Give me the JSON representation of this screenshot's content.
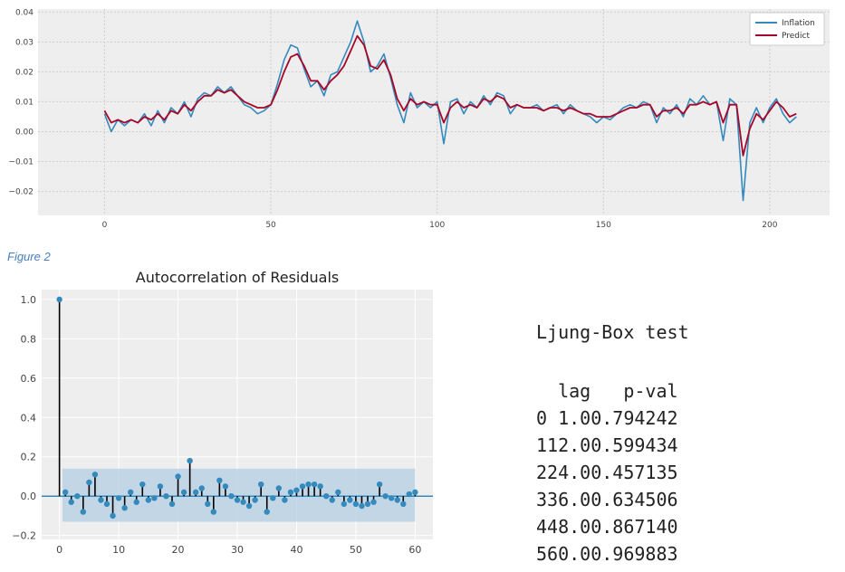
{
  "chart_data": [
    {
      "type": "line",
      "title": "",
      "xlabel": "",
      "ylabel": "",
      "xlim": [
        -20,
        218
      ],
      "ylim": [
        -0.028,
        0.041
      ],
      "xticks": [
        0,
        50,
        100,
        150,
        200
      ],
      "yticks": [
        0.04,
        0.03,
        0.02,
        0.01,
        0.0,
        -0.01,
        -0.02
      ],
      "ytick_labels": [
        "0.04",
        "0.03",
        "0.02",
        "0.01",
        "0.00",
        "−0.01",
        "−0.02"
      ],
      "grid": true,
      "legend_position": "top-right",
      "series": [
        {
          "name": "Inflation",
          "color": "#348abd",
          "x": [
            0,
            2,
            4,
            6,
            8,
            10,
            12,
            14,
            16,
            18,
            20,
            22,
            24,
            26,
            28,
            30,
            32,
            34,
            36,
            38,
            40,
            42,
            44,
            46,
            48,
            50,
            52,
            54,
            56,
            58,
            60,
            62,
            64,
            66,
            68,
            70,
            72,
            74,
            76,
            78,
            80,
            82,
            84,
            86,
            88,
            90,
            92,
            94,
            96,
            98,
            100,
            102,
            104,
            106,
            108,
            110,
            112,
            114,
            116,
            118,
            120,
            122,
            124,
            126,
            128,
            130,
            132,
            134,
            136,
            138,
            140,
            142,
            144,
            146,
            148,
            150,
            152,
            154,
            156,
            158,
            160,
            162,
            164,
            166,
            168,
            170,
            172,
            174,
            176,
            178,
            180,
            182,
            184,
            186,
            188,
            190,
            192,
            194,
            196,
            198,
            200,
            202,
            204,
            206,
            208
          ],
          "y": [
            0.006,
            0.0,
            0.004,
            0.002,
            0.004,
            0.003,
            0.006,
            0.002,
            0.007,
            0.003,
            0.008,
            0.006,
            0.01,
            0.005,
            0.011,
            0.013,
            0.012,
            0.015,
            0.013,
            0.015,
            0.012,
            0.009,
            0.008,
            0.006,
            0.007,
            0.009,
            0.016,
            0.024,
            0.029,
            0.028,
            0.021,
            0.015,
            0.017,
            0.012,
            0.019,
            0.02,
            0.025,
            0.03,
            0.037,
            0.03,
            0.02,
            0.022,
            0.026,
            0.018,
            0.009,
            0.003,
            0.013,
            0.008,
            0.01,
            0.008,
            0.01,
            -0.004,
            0.01,
            0.011,
            0.006,
            0.01,
            0.008,
            0.012,
            0.009,
            0.013,
            0.012,
            0.006,
            0.009,
            0.008,
            0.008,
            0.009,
            0.007,
            0.008,
            0.009,
            0.006,
            0.009,
            0.007,
            0.006,
            0.005,
            0.003,
            0.005,
            0.004,
            0.006,
            0.008,
            0.009,
            0.008,
            0.01,
            0.009,
            0.003,
            0.008,
            0.006,
            0.009,
            0.005,
            0.011,
            0.009,
            0.012,
            0.009,
            0.01,
            -0.003,
            0.011,
            0.009,
            -0.023,
            0.003,
            0.008,
            0.003,
            0.008,
            0.011,
            0.006,
            0.003,
            0.005
          ]
        },
        {
          "name": "Predict",
          "color": "#a60628",
          "x": [
            0,
            2,
            4,
            6,
            8,
            10,
            12,
            14,
            16,
            18,
            20,
            22,
            24,
            26,
            28,
            30,
            32,
            34,
            36,
            38,
            40,
            42,
            44,
            46,
            48,
            50,
            52,
            54,
            56,
            58,
            60,
            62,
            64,
            66,
            68,
            70,
            72,
            74,
            76,
            78,
            80,
            82,
            84,
            86,
            88,
            90,
            92,
            94,
            96,
            98,
            100,
            102,
            104,
            106,
            108,
            110,
            112,
            114,
            116,
            118,
            120,
            122,
            124,
            126,
            128,
            130,
            132,
            134,
            136,
            138,
            140,
            142,
            144,
            146,
            148,
            150,
            152,
            154,
            156,
            158,
            160,
            162,
            164,
            166,
            168,
            170,
            172,
            174,
            176,
            178,
            180,
            182,
            184,
            186,
            188,
            190,
            192,
            194,
            196,
            198,
            200,
            202,
            204,
            206,
            208
          ],
          "y": [
            0.007,
            0.003,
            0.004,
            0.003,
            0.004,
            0.003,
            0.005,
            0.004,
            0.006,
            0.004,
            0.007,
            0.006,
            0.009,
            0.007,
            0.01,
            0.012,
            0.012,
            0.014,
            0.013,
            0.014,
            0.012,
            0.01,
            0.009,
            0.008,
            0.008,
            0.009,
            0.014,
            0.02,
            0.025,
            0.026,
            0.022,
            0.017,
            0.017,
            0.014,
            0.017,
            0.019,
            0.022,
            0.027,
            0.032,
            0.029,
            0.022,
            0.021,
            0.024,
            0.019,
            0.011,
            0.007,
            0.011,
            0.009,
            0.01,
            0.009,
            0.009,
            0.003,
            0.008,
            0.01,
            0.008,
            0.009,
            0.008,
            0.011,
            0.01,
            0.012,
            0.011,
            0.008,
            0.009,
            0.008,
            0.008,
            0.008,
            0.007,
            0.008,
            0.008,
            0.007,
            0.008,
            0.007,
            0.006,
            0.006,
            0.005,
            0.005,
            0.005,
            0.006,
            0.007,
            0.008,
            0.008,
            0.009,
            0.009,
            0.005,
            0.007,
            0.007,
            0.008,
            0.006,
            0.009,
            0.009,
            0.01,
            0.009,
            0.01,
            0.003,
            0.009,
            0.009,
            -0.008,
            0.001,
            0.006,
            0.004,
            0.007,
            0.01,
            0.008,
            0.005,
            0.006
          ]
        }
      ]
    },
    {
      "type": "stem",
      "title": "Autocorrelation of Residuals",
      "xlabel": "",
      "ylabel": "",
      "xlim": [
        -3,
        63
      ],
      "ylim": [
        -0.22,
        1.05
      ],
      "xticks": [
        0,
        10,
        20,
        30,
        40,
        50,
        60
      ],
      "yticks": [
        1.0,
        0.8,
        0.6,
        0.4,
        0.2,
        0.0,
        -0.2
      ],
      "ytick_labels": [
        "1.0",
        "0.8",
        "0.6",
        "0.4",
        "0.2",
        "0.0",
        "−0.2"
      ],
      "grid": true,
      "confidence_band": [
        -0.13,
        0.14
      ],
      "lags": [
        0,
        1,
        2,
        3,
        4,
        5,
        6,
        7,
        8,
        9,
        10,
        11,
        12,
        13,
        14,
        15,
        16,
        17,
        18,
        19,
        20,
        21,
        22,
        23,
        24,
        25,
        26,
        27,
        28,
        29,
        30,
        31,
        32,
        33,
        34,
        35,
        36,
        37,
        38,
        39,
        40,
        41,
        42,
        43,
        44,
        45,
        46,
        47,
        48,
        49,
        50,
        51,
        52,
        53,
        54,
        55,
        56,
        57,
        58,
        59,
        60
      ],
      "values": [
        1.0,
        0.02,
        -0.03,
        0.0,
        -0.08,
        0.07,
        0.11,
        -0.02,
        -0.04,
        -0.1,
        -0.01,
        -0.06,
        0.02,
        -0.03,
        0.06,
        -0.02,
        -0.01,
        0.05,
        0.0,
        -0.04,
        0.1,
        0.02,
        0.18,
        0.02,
        0.04,
        -0.04,
        -0.08,
        0.08,
        0.05,
        0.0,
        -0.02,
        -0.03,
        -0.05,
        -0.02,
        0.06,
        -0.08,
        -0.01,
        0.04,
        -0.02,
        0.02,
        0.03,
        0.05,
        0.06,
        0.06,
        0.05,
        0.0,
        -0.02,
        0.02,
        -0.04,
        -0.02,
        -0.04,
        -0.05,
        -0.04,
        -0.03,
        0.06,
        0.0,
        -0.01,
        -0.02,
        -0.04,
        0.01,
        0.02
      ]
    }
  ],
  "figure_caption": "Figure 2",
  "ljung_box": {
    "title": "Ljung-Box test",
    "headers": [
      "lag",
      "p-val"
    ],
    "rows": [
      {
        "index": "0",
        "lag": "1.0",
        "pval": "0.794242"
      },
      {
        "index": "1",
        "lag": "12.0",
        "pval": "0.599434"
      },
      {
        "index": "2",
        "lag": "24.0",
        "pval": "0.457135"
      },
      {
        "index": "3",
        "lag": "36.0",
        "pval": "0.634506"
      },
      {
        "index": "4",
        "lag": "48.0",
        "pval": "0.867140"
      },
      {
        "index": "5",
        "lag": "60.0",
        "pval": "0.969883"
      }
    ]
  },
  "colors": {
    "plot_bg": "#eeeeee",
    "grid": "#cfcfcf",
    "band": "#b3cde3",
    "acf_marker": "#348abd"
  }
}
